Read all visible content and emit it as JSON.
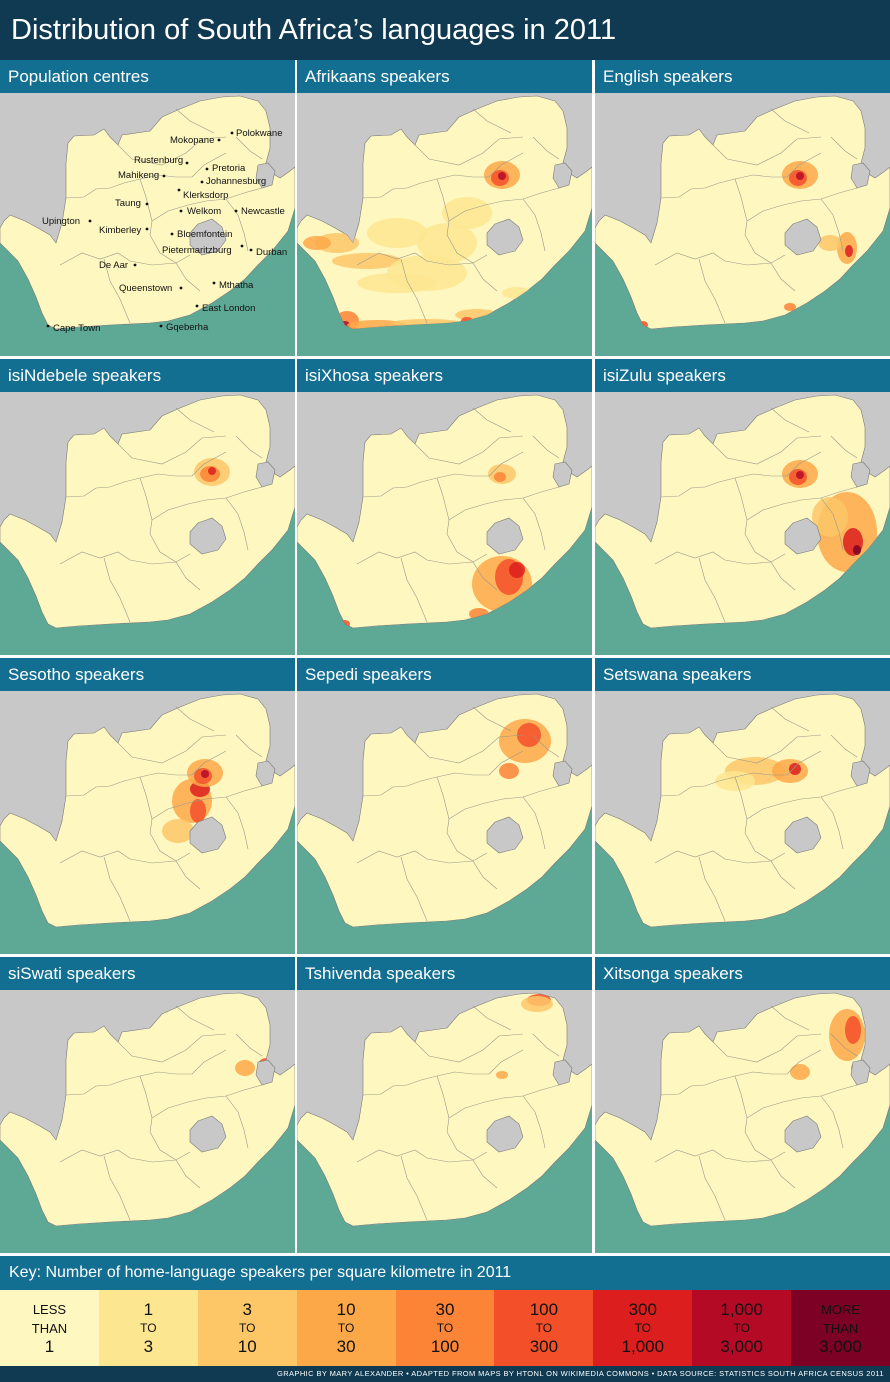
{
  "title": "Distribution of South Africa’s languages in 2011",
  "panels": [
    {
      "title": "Population centres",
      "hot": []
    },
    {
      "title": "Afrikaans speakers",
      "hot": [
        "west",
        "gauteng",
        "cape",
        "coast"
      ]
    },
    {
      "title": "English speakers",
      "hot": [
        "gauteng",
        "durban",
        "cape_small",
        "coast_small"
      ]
    },
    {
      "title": "isiNdebele speakers",
      "hot": [
        "gauteng_ne"
      ]
    },
    {
      "title": "isiXhosa speakers",
      "hot": [
        "eastcape",
        "gauteng_small",
        "cape_small"
      ]
    },
    {
      "title": "isiZulu speakers",
      "hot": [
        "kzn",
        "gauteng"
      ]
    },
    {
      "title": "Sesotho speakers",
      "hot": [
        "freestate",
        "gauteng"
      ]
    },
    {
      "title": "Sepedi speakers",
      "hot": [
        "limpopo"
      ]
    },
    {
      "title": "Setswana speakers",
      "hot": [
        "northwest"
      ]
    },
    {
      "title": "siSwati speakers",
      "hot": [
        "eswatini"
      ]
    },
    {
      "title": "Tshivenda speakers",
      "hot": [
        "venda"
      ]
    },
    {
      "title": "Xitsonga speakers",
      "hot": [
        "tsonga"
      ]
    }
  ],
  "cities": [
    {
      "name": "Polokwane"
    },
    {
      "name": "Mokopane"
    },
    {
      "name": "Rustenburg"
    },
    {
      "name": "Pretoria"
    },
    {
      "name": "Mahikeng"
    },
    {
      "name": "Johannesburg"
    },
    {
      "name": "Klerksdorp"
    },
    {
      "name": "Taung"
    },
    {
      "name": "Welkom"
    },
    {
      "name": "Newcastle"
    },
    {
      "name": "Upington"
    },
    {
      "name": "Kimberley"
    },
    {
      "name": "Bloemfontein"
    },
    {
      "name": "Pietermaritzburg"
    },
    {
      "name": "Durban"
    },
    {
      "name": "De Aar"
    },
    {
      "name": "Mthatha"
    },
    {
      "name": "Queenstown"
    },
    {
      "name": "East London"
    },
    {
      "name": "Cape Town"
    },
    {
      "name": "Gqeberha"
    }
  ],
  "key": {
    "title": "Key: Number of home-language speakers per square kilometre in 2011",
    "bins": [
      {
        "a": "LESS",
        "b": "THAN",
        "c": "1",
        "color": "#fff7c0"
      },
      {
        "a": "1",
        "b": "TO",
        "c": "3",
        "color": "#fde690"
      },
      {
        "a": "3",
        "b": "TO",
        "c": "10",
        "color": "#fdc768"
      },
      {
        "a": "10",
        "b": "TO",
        "c": "30",
        "color": "#fda848"
      },
      {
        "a": "30",
        "b": "TO",
        "c": "100",
        "color": "#fb8436"
      },
      {
        "a": "100",
        "b": "TO",
        "c": "300",
        "color": "#f3502a"
      },
      {
        "a": "300",
        "b": "TO",
        "c": "1,000",
        "color": "#dc1f1e"
      },
      {
        "a": "1,000",
        "b": "TO",
        "c": "3,000",
        "color": "#b40a26"
      },
      {
        "a": "MORE",
        "b": "THAN",
        "c": "3,000",
        "color": "#7d0025"
      }
    ]
  },
  "credit": "GRAPHIC BY MARY ALEXANDER • ADAPTED FROM MAPS BY HTONL ON WIKIMEDIA COMMONS • DATA SOURCE: STATISTICS SOUTH AFRICA CENSUS 2011",
  "colors": {
    "ocean": "#5ea896",
    "land": "#fff7c0",
    "neighbour": "#c8c8c8",
    "lesotho": "#c8c8c8"
  }
}
